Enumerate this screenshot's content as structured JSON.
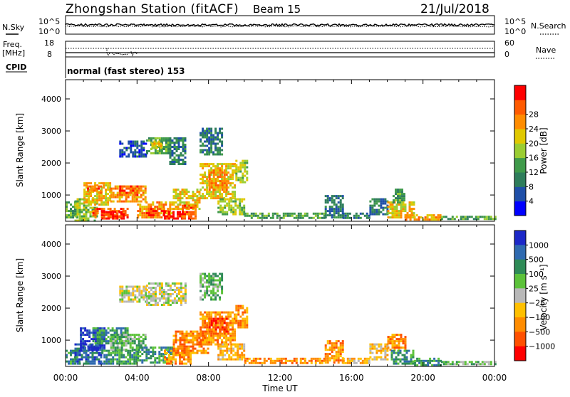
{
  "header": {
    "station": "Zhongshan Station (fitACF)",
    "beam": "Beam 15",
    "date": "21/Jul/2018"
  },
  "noise_panel": {
    "left_label": "N.Sky",
    "right_label": "N.Search",
    "left_ticks": [
      "10^5",
      "10^0"
    ],
    "right_ticks": [
      "10^5",
      "10^0"
    ]
  },
  "freq_panel": {
    "left_label": "Freq.",
    "left_unit": "[MHz]",
    "left_ticks": [
      "18",
      "8"
    ],
    "right_label": "Nave",
    "right_ticks": [
      "60",
      "0"
    ]
  },
  "cpid": {
    "label": "CPID",
    "text": "normal (fast stereo) 153"
  },
  "colors": {
    "power": [
      "#0000ff",
      "#1f4fa8",
      "#2e7d5b",
      "#3f9a4a",
      "#9acd32",
      "#e0c800",
      "#ff8c00",
      "#ff5a00",
      "#ff0000"
    ],
    "velocity": [
      "#1c28c8",
      "#2f6ab0",
      "#2e8b57",
      "#5cc23a",
      "#b8b8b8",
      "#ffc000",
      "#ff8c00",
      "#ff5000",
      "#ff0000"
    ]
  },
  "chart_data": [
    {
      "type": "heatmap",
      "name": "power",
      "ylabel": "Slant Range [km]",
      "x_ticks": [
        "00:00",
        "04:00",
        "08:00",
        "12:00",
        "16:00",
        "20:00",
        "00:00"
      ],
      "y_ticks": [
        1000,
        2000,
        3000,
        4000
      ],
      "xlim": [
        0,
        24
      ],
      "ylim": [
        180,
        4600
      ],
      "colorbar": {
        "label": "Power [dB]",
        "ticks": [
          "4",
          "8",
          "12",
          "16",
          "20",
          "24",
          "28"
        ],
        "range": [
          0,
          30
        ]
      },
      "patches": [
        {
          "x": [
            0.0,
            0.6
          ],
          "y": [
            300,
            800
          ],
          "level": 3
        },
        {
          "x": [
            0.5,
            1.8
          ],
          "y": [
            200,
            900
          ],
          "level": 4
        },
        {
          "x": [
            1.5,
            3.5
          ],
          "y": [
            300,
            600
          ],
          "level": 7
        },
        {
          "x": [
            2.0,
            3.2
          ],
          "y": [
            300,
            500
          ],
          "level": 8
        },
        {
          "x": [
            1.0,
            2.5
          ],
          "y": [
            700,
            1400
          ],
          "level": 5
        },
        {
          "x": [
            1.2,
            2.0
          ],
          "y": [
            1100,
            1300
          ],
          "level": 7
        },
        {
          "x": [
            2.5,
            4.5
          ],
          "y": [
            800,
            1300
          ],
          "level": 6
        },
        {
          "x": [
            3.0,
            4.0
          ],
          "y": [
            1000,
            1300
          ],
          "level": 7
        },
        {
          "x": [
            4.0,
            6.0
          ],
          "y": [
            300,
            800
          ],
          "level": 6
        },
        {
          "x": [
            4.5,
            5.5
          ],
          "y": [
            350,
            600
          ],
          "level": 7
        },
        {
          "x": [
            5.5,
            6.5
          ],
          "y": [
            300,
            500
          ],
          "level": 8
        },
        {
          "x": [
            6.0,
            7.5
          ],
          "y": [
            600,
            1200
          ],
          "level": 5
        },
        {
          "x": [
            6.5,
            7.3
          ],
          "y": [
            300,
            700
          ],
          "level": 7
        },
        {
          "x": [
            7.5,
            9.5
          ],
          "y": [
            900,
            2000
          ],
          "level": 5
        },
        {
          "x": [
            8.0,
            9.0
          ],
          "y": [
            1200,
            1800
          ],
          "level": 6
        },
        {
          "x": [
            9.5,
            10.2
          ],
          "y": [
            1400,
            2100
          ],
          "level": 4
        },
        {
          "x": [
            3.0,
            4.5
          ],
          "y": [
            2200,
            2700
          ],
          "level": 1
        },
        {
          "x": [
            4.5,
            5.8
          ],
          "y": [
            2300,
            2800
          ],
          "level": 3
        },
        {
          "x": [
            4.8,
            5.5
          ],
          "y": [
            2500,
            2700
          ],
          "level": 5
        },
        {
          "x": [
            5.8,
            6.7
          ],
          "y": [
            2000,
            2800
          ],
          "level": 2
        },
        {
          "x": [
            7.5,
            8.8
          ],
          "y": [
            2300,
            3100
          ],
          "level": 2
        },
        {
          "x": [
            8.5,
            10.0
          ],
          "y": [
            400,
            900
          ],
          "level": 4
        },
        {
          "x": [
            10.0,
            14.5
          ],
          "y": [
            300,
            450
          ],
          "level": 3
        },
        {
          "x": [
            14.5,
            15.5
          ],
          "y": [
            300,
            1000
          ],
          "level": 2
        },
        {
          "x": [
            15.5,
            17.0
          ],
          "y": [
            300,
            450
          ],
          "level": 2
        },
        {
          "x": [
            17.0,
            18.0
          ],
          "y": [
            400,
            900
          ],
          "level": 2
        },
        {
          "x": [
            18.0,
            19.5
          ],
          "y": [
            300,
            800
          ],
          "level": 5
        },
        {
          "x": [
            18.3,
            19.0
          ],
          "y": [
            800,
            1200
          ],
          "level": 3
        },
        {
          "x": [
            19.0,
            21.0
          ],
          "y": [
            250,
            400
          ],
          "level": 6
        },
        {
          "x": [
            21.0,
            24.0
          ],
          "y": [
            250,
            350
          ],
          "level": 3
        }
      ]
    },
    {
      "type": "heatmap",
      "name": "velocity",
      "ylabel": "Slant Range [km]",
      "xlabel": "Time UT",
      "x_ticks": [
        "00:00",
        "04:00",
        "08:00",
        "12:00",
        "16:00",
        "20:00",
        "00:00"
      ],
      "y_ticks": [
        1000,
        2000,
        3000,
        4000
      ],
      "xlim": [
        0,
        24
      ],
      "ylim": [
        180,
        4600
      ],
      "colorbar": {
        "label": "Velocity [m s⁻¹]",
        "ticks": [
          "1000",
          "500",
          "100",
          "25",
          "−25",
          "−100",
          "−500",
          "−1000"
        ]
      },
      "patches": [
        {
          "x": [
            0.0,
            0.8
          ],
          "y": [
            250,
            700
          ],
          "level": 2
        },
        {
          "x": [
            0.5,
            2.0
          ],
          "y": [
            300,
            900
          ],
          "level": 1
        },
        {
          "x": [
            0.8,
            2.2
          ],
          "y": [
            700,
            1400
          ],
          "level": 0
        },
        {
          "x": [
            1.5,
            3.5
          ],
          "y": [
            900,
            1400
          ],
          "level": 2
        },
        {
          "x": [
            2.0,
            4.0
          ],
          "y": [
            300,
            700
          ],
          "level": 2
        },
        {
          "x": [
            2.5,
            4.5
          ],
          "y": [
            700,
            1200
          ],
          "level": 3
        },
        {
          "x": [
            4.0,
            6.0
          ],
          "y": [
            300,
            800
          ],
          "level": 2
        },
        {
          "x": [
            5.5,
            7.0
          ],
          "y": [
            300,
            700
          ],
          "level": 6
        },
        {
          "x": [
            6.0,
            8.0
          ],
          "y": [
            600,
            1300
          ],
          "level": 6
        },
        {
          "x": [
            7.5,
            9.5
          ],
          "y": [
            900,
            1900
          ],
          "level": 6
        },
        {
          "x": [
            8.0,
            9.0
          ],
          "y": [
            1200,
            1700
          ],
          "level": 7
        },
        {
          "x": [
            9.5,
            10.2
          ],
          "y": [
            1400,
            2100
          ],
          "level": 6
        },
        {
          "x": [
            3.0,
            4.5
          ],
          "y": [
            2200,
            2700
          ],
          "level": 4
        },
        {
          "x": [
            4.5,
            6.7
          ],
          "y": [
            2100,
            2800
          ],
          "level": 4
        },
        {
          "x": [
            7.5,
            8.8
          ],
          "y": [
            2300,
            3100
          ],
          "level": 3
        },
        {
          "x": [
            8.5,
            10.0
          ],
          "y": [
            400,
            900
          ],
          "level": 5
        },
        {
          "x": [
            10.0,
            14.5
          ],
          "y": [
            300,
            450
          ],
          "level": 6
        },
        {
          "x": [
            14.5,
            15.5
          ],
          "y": [
            300,
            1000
          ],
          "level": 6
        },
        {
          "x": [
            15.5,
            17.0
          ],
          "y": [
            300,
            450
          ],
          "level": 5
        },
        {
          "x": [
            17.0,
            18.0
          ],
          "y": [
            400,
            900
          ],
          "level": 5
        },
        {
          "x": [
            18.0,
            19.0
          ],
          "y": [
            700,
            1200
          ],
          "level": 6
        },
        {
          "x": [
            18.2,
            19.5
          ],
          "y": [
            300,
            700
          ],
          "level": 2
        },
        {
          "x": [
            19.5,
            21.0
          ],
          "y": [
            250,
            450
          ],
          "level": 2
        },
        {
          "x": [
            21.0,
            24.0
          ],
          "y": [
            250,
            350
          ],
          "level": 3
        }
      ]
    }
  ]
}
